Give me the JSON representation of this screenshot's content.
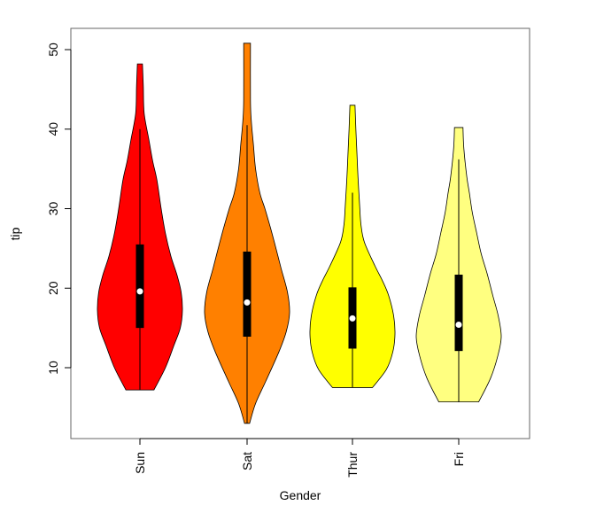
{
  "chart_data": {
    "type": "violin",
    "title": "",
    "xlabel": "Gender",
    "ylabel": "tip",
    "ylim": [
      1,
      52.5
    ],
    "yticks": [
      10,
      20,
      30,
      40,
      50
    ],
    "grid": false,
    "categories": [
      "Sun",
      "Sat",
      "Thur",
      "Fri"
    ],
    "series": [
      {
        "category": "Sun",
        "color": "#FF0000",
        "min": 7.2,
        "max": 48.2,
        "q1": 15.0,
        "median": 19.6,
        "q3": 25.5,
        "whisker_low": 7.2,
        "whisker_high": 40.0,
        "density": [
          [
            7.2,
            0.33
          ],
          [
            10,
            0.6
          ],
          [
            12.8,
            0.8
          ],
          [
            15,
            0.95
          ],
          [
            17.2,
            1.0
          ],
          [
            19.5,
            0.97
          ],
          [
            21.7,
            0.87
          ],
          [
            24,
            0.73
          ],
          [
            26.9,
            0.6
          ],
          [
            30,
            0.5
          ],
          [
            33.6,
            0.4
          ],
          [
            36,
            0.3
          ],
          [
            38.7,
            0.21
          ],
          [
            42,
            0.1
          ],
          [
            45.4,
            0.08
          ],
          [
            48.2,
            0.06
          ]
        ]
      },
      {
        "category": "Sat",
        "color": "#FF8000",
        "min": 3.0,
        "max": 50.8,
        "q1": 13.9,
        "median": 18.2,
        "q3": 24.6,
        "whisker_low": 3.0,
        "whisker_high": 40.5,
        "density": [
          [
            3.0,
            0.06
          ],
          [
            5.5,
            0.2
          ],
          [
            8.3,
            0.44
          ],
          [
            12,
            0.75
          ],
          [
            14.5,
            0.92
          ],
          [
            16.9,
            1.0
          ],
          [
            19.5,
            0.95
          ],
          [
            22.5,
            0.8
          ],
          [
            25,
            0.68
          ],
          [
            27.6,
            0.55
          ],
          [
            30,
            0.42
          ],
          [
            32,
            0.3
          ],
          [
            35,
            0.2
          ],
          [
            38,
            0.15
          ],
          [
            41,
            0.1
          ],
          [
            43.6,
            0.08
          ],
          [
            50.8,
            0.08
          ]
        ]
      },
      {
        "category": "Thur",
        "color": "#FFFF00",
        "min": 7.5,
        "max": 43.0,
        "q1": 12.4,
        "median": 16.2,
        "q3": 20.1,
        "whisker_low": 7.5,
        "whisker_high": 32.0,
        "density": [
          [
            7.5,
            0.47
          ],
          [
            9.8,
            0.8
          ],
          [
            12,
            0.95
          ],
          [
            14.2,
            1.0
          ],
          [
            16.5,
            0.97
          ],
          [
            19.1,
            0.85
          ],
          [
            21,
            0.7
          ],
          [
            22.8,
            0.53
          ],
          [
            25.8,
            0.28
          ],
          [
            28,
            0.2
          ],
          [
            30.3,
            0.17
          ],
          [
            34,
            0.13
          ],
          [
            37.6,
            0.1
          ],
          [
            40,
            0.08
          ],
          [
            43,
            0.06
          ]
        ]
      },
      {
        "category": "Fri",
        "color": "#FFFF80",
        "min": 5.7,
        "max": 40.2,
        "q1": 12.1,
        "median": 15.4,
        "q3": 21.7,
        "whisker_low": 5.7,
        "whisker_high": 36.2,
        "density": [
          [
            5.7,
            0.47
          ],
          [
            8.7,
            0.75
          ],
          [
            11.5,
            0.92
          ],
          [
            13.9,
            1.0
          ],
          [
            16.5,
            0.93
          ],
          [
            19.1,
            0.8
          ],
          [
            21.8,
            0.67
          ],
          [
            24.3,
            0.53
          ],
          [
            27,
            0.42
          ],
          [
            29.5,
            0.32
          ],
          [
            32,
            0.25
          ],
          [
            34,
            0.19
          ],
          [
            37.6,
            0.12
          ],
          [
            40.2,
            0.1
          ]
        ]
      }
    ]
  }
}
